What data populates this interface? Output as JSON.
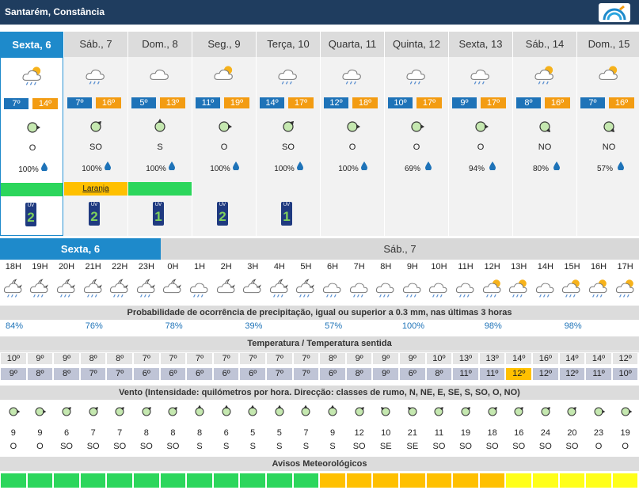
{
  "location": "Santarém, Constância",
  "colors": {
    "header_bg": "#1f3d5f",
    "selected": "#1e8acb",
    "tmin": "#1e73b8",
    "tmax": "#f39c12",
    "green": "#2cd65c",
    "orange": "#ffc000",
    "yellow": "#ffff1a"
  },
  "days": [
    {
      "name": "Sexta, 6",
      "icon": "cloud-sun-rain-icon",
      "tmin": "7º",
      "tmax": "14º",
      "dir": "O",
      "angle": 90,
      "prob": "100%",
      "warn": "",
      "warn_color": "#2cd65c",
      "uv": "2"
    },
    {
      "name": "Sáb., 7",
      "icon": "cloud-rain-icon",
      "tmin": "7º",
      "tmax": "16º",
      "dir": "SO",
      "angle": 45,
      "prob": "100%",
      "warn": "Laranja",
      "warn_color": "#ffc000",
      "uv": "2"
    },
    {
      "name": "Dom., 8",
      "icon": "cloud-icon",
      "tmin": "5º",
      "tmax": "13º",
      "dir": "S",
      "angle": 0,
      "prob": "100%",
      "warn": "",
      "warn_color": "#2cd65c",
      "uv": "1"
    },
    {
      "name": "Seg., 9",
      "icon": "cloud-sun-icon",
      "tmin": "11º",
      "tmax": "19º",
      "dir": "O",
      "angle": 90,
      "prob": "100%",
      "warn": "",
      "warn_color": "",
      "uv": "2"
    },
    {
      "name": "Terça, 10",
      "icon": "cloud-rain-icon",
      "tmin": "14º",
      "tmax": "17º",
      "dir": "SO",
      "angle": 45,
      "prob": "100%",
      "warn": "",
      "warn_color": "",
      "uv": "1"
    },
    {
      "name": "Quarta, 11",
      "icon": "cloud-rain-icon",
      "tmin": "12º",
      "tmax": "18º",
      "dir": "O",
      "angle": 90,
      "prob": "100%",
      "warn": "",
      "warn_color": "",
      "uv": ""
    },
    {
      "name": "Quinta, 12",
      "icon": "cloud-rain-icon",
      "tmin": "10º",
      "tmax": "17º",
      "dir": "O",
      "angle": 90,
      "prob": "69%",
      "warn": "",
      "warn_color": "",
      "uv": ""
    },
    {
      "name": "Sexta, 13",
      "icon": "cloud-rain-icon",
      "tmin": "9º",
      "tmax": "17º",
      "dir": "O",
      "angle": 90,
      "prob": "94%",
      "warn": "",
      "warn_color": "",
      "uv": ""
    },
    {
      "name": "Sáb., 14",
      "icon": "cloud-sun-rain-icon",
      "tmin": "8º",
      "tmax": "16º",
      "dir": "NO",
      "angle": 135,
      "prob": "80%",
      "warn": "",
      "warn_color": "",
      "uv": ""
    },
    {
      "name": "Dom., 15",
      "icon": "cloud-sun-icon",
      "tmin": "7º",
      "tmax": "16º",
      "dir": "NO",
      "angle": 135,
      "prob": "57%",
      "warn": "",
      "warn_color": "",
      "uv": ""
    }
  ],
  "uv_label": "UV",
  "hourly_days": {
    "first": "Sexta, 6",
    "second": "Sáb., 7"
  },
  "hours": [
    {
      "h": "18H",
      "icon": "night-rain",
      "t": "10º",
      "f": "9º",
      "spd": "9",
      "dir": "O",
      "angle": 90,
      "alert": "#2cd65c"
    },
    {
      "h": "19H",
      "icon": "night-rain",
      "t": "9º",
      "f": "8º",
      "spd": "9",
      "dir": "O",
      "angle": 90,
      "alert": "#2cd65c"
    },
    {
      "h": "20H",
      "icon": "night-rain",
      "t": "9º",
      "f": "8º",
      "spd": "6",
      "dir": "SO",
      "angle": 45,
      "alert": "#2cd65c"
    },
    {
      "h": "21H",
      "icon": "night-rain",
      "t": "8º",
      "f": "7º",
      "spd": "7",
      "dir": "SO",
      "angle": 45,
      "alert": "#2cd65c"
    },
    {
      "h": "22H",
      "icon": "night-rain",
      "t": "8º",
      "f": "7º",
      "spd": "7",
      "dir": "SO",
      "angle": 45,
      "alert": "#2cd65c"
    },
    {
      "h": "23H",
      "icon": "night-rain",
      "t": "7º",
      "f": "6º",
      "spd": "8",
      "dir": "SO",
      "angle": 45,
      "alert": "#2cd65c"
    },
    {
      "h": "0H",
      "icon": "night-cloud",
      "t": "7º",
      "f": "6º",
      "spd": "8",
      "dir": "SO",
      "angle": 45,
      "alert": "#2cd65c"
    },
    {
      "h": "1H",
      "icon": "cloud-rain",
      "t": "7º",
      "f": "6º",
      "spd": "8",
      "dir": "S",
      "angle": 0,
      "alert": "#2cd65c"
    },
    {
      "h": "2H",
      "icon": "night-cloud",
      "t": "7º",
      "f": "6º",
      "spd": "6",
      "dir": "S",
      "angle": 0,
      "alert": "#2cd65c"
    },
    {
      "h": "3H",
      "icon": "night-cloud",
      "t": "7º",
      "f": "6º",
      "spd": "5",
      "dir": "S",
      "angle": 0,
      "alert": "#2cd65c"
    },
    {
      "h": "4H",
      "icon": "night-rain",
      "t": "7º",
      "f": "7º",
      "spd": "5",
      "dir": "S",
      "angle": 0,
      "alert": "#2cd65c"
    },
    {
      "h": "5H",
      "icon": "night-rain",
      "t": "7º",
      "f": "7º",
      "spd": "7",
      "dir": "S",
      "angle": 0,
      "alert": "#2cd65c"
    },
    {
      "h": "6H",
      "icon": "cloud-rain",
      "t": "8º",
      "f": "6º",
      "spd": "9",
      "dir": "S",
      "angle": 0,
      "alert": "#ffc000"
    },
    {
      "h": "7H",
      "icon": "cloud-rain",
      "t": "9º",
      "f": "8º",
      "spd": "12",
      "dir": "SO",
      "angle": 45,
      "alert": "#ffc000"
    },
    {
      "h": "8H",
      "icon": "cloud-rain",
      "t": "9º",
      "f": "9º",
      "spd": "10",
      "dir": "SE",
      "angle": -45,
      "alert": "#ffc000"
    },
    {
      "h": "9H",
      "icon": "cloud-rain",
      "t": "9º",
      "f": "6º",
      "spd": "21",
      "dir": "SE",
      "angle": -45,
      "alert": "#ffc000"
    },
    {
      "h": "10H",
      "icon": "cloud-rain",
      "t": "10º",
      "f": "8º",
      "spd": "11",
      "dir": "SO",
      "angle": 45,
      "alert": "#ffc000"
    },
    {
      "h": "11H",
      "icon": "cloud-rain",
      "t": "13º",
      "f": "11º",
      "spd": "19",
      "dir": "SO",
      "angle": 45,
      "alert": "#ffc000"
    },
    {
      "h": "12H",
      "icon": "sun-rain",
      "t": "13º",
      "f": "11º",
      "spd": "18",
      "dir": "SO",
      "angle": 45,
      "alert": "#ffc000"
    },
    {
      "h": "13H",
      "icon": "sun-rain",
      "t": "14º",
      "f": "12º",
      "spd": "16",
      "dir": "SO",
      "angle": 45,
      "alert": "#ffff1a"
    },
    {
      "h": "14H",
      "icon": "cloud-rain",
      "t": "16º",
      "f": "12º",
      "spd": "24",
      "dir": "SO",
      "angle": 45,
      "alert": "#ffff1a"
    },
    {
      "h": "15H",
      "icon": "sun-rain",
      "t": "14º",
      "f": "12º",
      "spd": "20",
      "dir": "SO",
      "angle": 45,
      "alert": "#ffff1a"
    },
    {
      "h": "16H",
      "icon": "sun-rain",
      "t": "14º",
      "f": "11º",
      "spd": "23",
      "dir": "O",
      "angle": 90,
      "alert": "#ffff1a"
    },
    {
      "h": "17H",
      "icon": "sun-rain",
      "t": "12º",
      "f": "10º",
      "spd": "19",
      "dir": "O",
      "angle": 90,
      "alert": "#ffff1a"
    }
  ],
  "sections": {
    "prob": "Probabilidade de ocorrência de precipitação, igual ou superior a 0.3 mm, nas últimas 3 horas",
    "temp": "Temperatura / Temperatura sentida",
    "wind": "Vento (Intensidade: quilómetros por hora. Direcção: classes de rumo, N, NE, E, SE, S, SO, O, NO)",
    "alerts": "Avisos Meteorológicos"
  },
  "prob_values": [
    "84%",
    "76%",
    "78%",
    "39%",
    "57%",
    "100%",
    "98%",
    "98%"
  ]
}
